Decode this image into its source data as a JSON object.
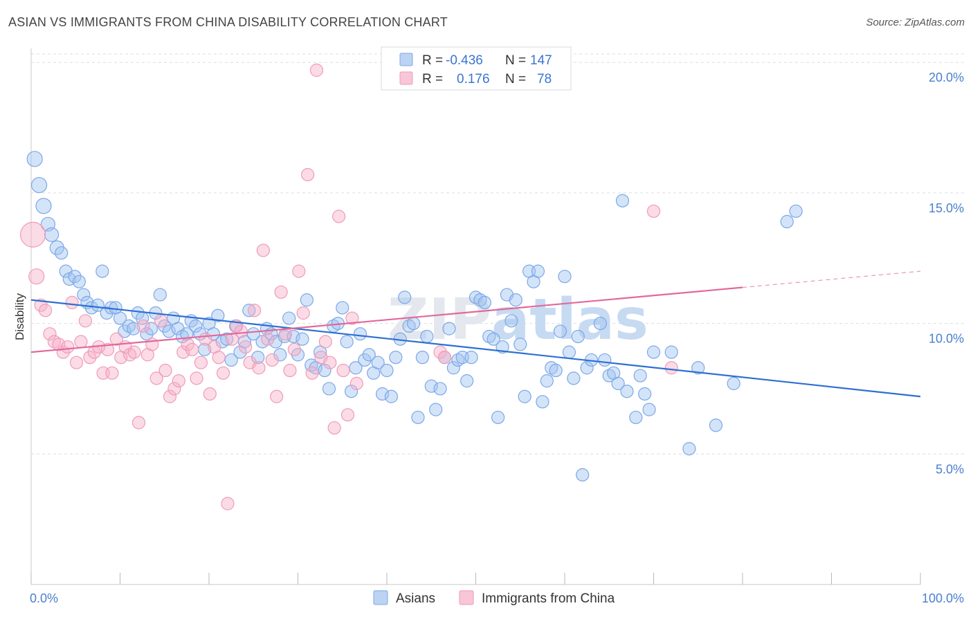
{
  "header": {
    "title": "ASIAN VS IMMIGRANTS FROM CHINA DISABILITY CORRELATION CHART",
    "source": "Source: ZipAtlas.com"
  },
  "watermark": {
    "zip": "ZIP",
    "atlas": "atlas"
  },
  "legend_top": {
    "rows": [
      {
        "r_label": "R =",
        "r_value": "-0.436",
        "n_label": "N =",
        "n_value": "147",
        "color": "#7aa7e8"
      },
      {
        "r_label": "R =",
        "r_value": "0.176",
        "n_label": "N =",
        "n_value": "78",
        "color": "#f09ab8"
      }
    ]
  },
  "legend_bottom": {
    "items": [
      {
        "label": "Asians",
        "color": "#7aa7e8"
      },
      {
        "label": "Immigrants from China",
        "color": "#f09ab8"
      }
    ]
  },
  "chart_data": {
    "type": "scatter",
    "title": "ASIAN VS IMMIGRANTS FROM CHINA DISABILITY CORRELATION CHART",
    "xlabel": "",
    "ylabel": "Disability",
    "x_ticks": [
      "0.0%",
      "100.0%"
    ],
    "y_ticks": [
      "5.0%",
      "10.0%",
      "15.0%",
      "20.0%"
    ],
    "xlim": [
      0,
      100
    ],
    "ylim": [
      0,
      20.8
    ],
    "grid": "horizontal dashed",
    "legend_position": "top-center",
    "series": [
      {
        "name": "Asians",
        "color": "#7aa7e8",
        "line_color": "#2d6fd2",
        "trend": {
          "x0": 0,
          "y0": 10.9,
          "x1": 100,
          "y1": 7.2,
          "dash_from": null
        },
        "points": [
          [
            0.4,
            16.3,
            11
          ],
          [
            0.9,
            15.3,
            11
          ],
          [
            1.4,
            14.5,
            11
          ],
          [
            1.9,
            13.8,
            10
          ],
          [
            2.3,
            13.4,
            10
          ],
          [
            2.9,
            12.9,
            10
          ],
          [
            3.4,
            12.7,
            9
          ],
          [
            3.9,
            12.0,
            9
          ],
          [
            4.3,
            11.7,
            9
          ],
          [
            4.9,
            11.8,
            9
          ],
          [
            5.4,
            11.6,
            9
          ],
          [
            5.9,
            11.1,
            9
          ],
          [
            6.3,
            10.8,
            9
          ],
          [
            6.8,
            10.6,
            9
          ],
          [
            7.5,
            10.7,
            9
          ],
          [
            8.0,
            12.0,
            9
          ],
          [
            8.5,
            10.4,
            9
          ],
          [
            9.0,
            10.6,
            9
          ],
          [
            9.5,
            10.6,
            9
          ],
          [
            10.0,
            10.2,
            9
          ],
          [
            10.5,
            9.7,
            9
          ],
          [
            11.0,
            9.9,
            9
          ],
          [
            11.5,
            9.8,
            9
          ],
          [
            12.0,
            10.4,
            9
          ],
          [
            12.5,
            10.2,
            9
          ],
          [
            13.0,
            9.6,
            9
          ],
          [
            13.5,
            9.8,
            9
          ],
          [
            14.0,
            10.4,
            9
          ],
          [
            14.5,
            11.1,
            9
          ],
          [
            15.0,
            9.9,
            9
          ],
          [
            15.5,
            9.7,
            9
          ],
          [
            16.0,
            10.2,
            9
          ],
          [
            16.5,
            9.8,
            9
          ],
          [
            17.0,
            9.5,
            9
          ],
          [
            17.5,
            9.6,
            9
          ],
          [
            18.0,
            10.1,
            9
          ],
          [
            18.5,
            9.9,
            9
          ],
          [
            19.0,
            9.6,
            9
          ],
          [
            19.5,
            9.0,
            9
          ],
          [
            20.0,
            10.0,
            9
          ],
          [
            20.5,
            9.6,
            9
          ],
          [
            21.0,
            10.3,
            9
          ],
          [
            21.5,
            9.3,
            9
          ],
          [
            22.0,
            9.4,
            9
          ],
          [
            22.5,
            8.6,
            9
          ],
          [
            23.0,
            9.9,
            9
          ],
          [
            23.5,
            8.9,
            9
          ],
          [
            24.0,
            9.3,
            9
          ],
          [
            24.5,
            10.5,
            9
          ],
          [
            25.0,
            9.6,
            9
          ],
          [
            25.5,
            8.7,
            9
          ],
          [
            26.0,
            9.3,
            9
          ],
          [
            26.5,
            9.8,
            9
          ],
          [
            27.0,
            9.6,
            9
          ],
          [
            27.5,
            9.3,
            9
          ],
          [
            28.0,
            8.8,
            9
          ],
          [
            28.5,
            9.5,
            9
          ],
          [
            29.0,
            10.2,
            9
          ],
          [
            29.5,
            9.5,
            9
          ],
          [
            30.0,
            8.8,
            9
          ],
          [
            30.5,
            9.4,
            9
          ],
          [
            31.0,
            10.9,
            9
          ],
          [
            31.5,
            8.4,
            9
          ],
          [
            32.0,
            8.3,
            9
          ],
          [
            32.5,
            8.9,
            9
          ],
          [
            33.0,
            8.2,
            9
          ],
          [
            33.5,
            7.5,
            9
          ],
          [
            34.0,
            9.9,
            9
          ],
          [
            34.5,
            10.0,
            9
          ],
          [
            35.0,
            10.6,
            9
          ],
          [
            35.5,
            9.3,
            9
          ],
          [
            36.0,
            7.4,
            9
          ],
          [
            36.5,
            8.3,
            9
          ],
          [
            37.0,
            9.6,
            9
          ],
          [
            37.5,
            8.6,
            9
          ],
          [
            38.0,
            8.8,
            9
          ],
          [
            38.5,
            8.1,
            9
          ],
          [
            39.0,
            8.5,
            9
          ],
          [
            39.5,
            7.3,
            9
          ],
          [
            40.0,
            8.2,
            9
          ],
          [
            40.5,
            7.2,
            9
          ],
          [
            41.0,
            8.7,
            9
          ],
          [
            41.5,
            9.4,
            9
          ],
          [
            42.0,
            11.0,
            9
          ],
          [
            42.5,
            9.9,
            9
          ],
          [
            43.0,
            10.0,
            9
          ],
          [
            43.5,
            6.4,
            9
          ],
          [
            44.0,
            8.7,
            9
          ],
          [
            44.5,
            9.5,
            9
          ],
          [
            45.0,
            7.6,
            9
          ],
          [
            45.5,
            6.7,
            9
          ],
          [
            46.0,
            7.5,
            9
          ],
          [
            46.5,
            8.7,
            9
          ],
          [
            47.0,
            9.8,
            9
          ],
          [
            47.5,
            8.3,
            9
          ],
          [
            48.0,
            8.6,
            9
          ],
          [
            48.5,
            8.7,
            9
          ],
          [
            49.0,
            7.8,
            9
          ],
          [
            49.5,
            8.7,
            9
          ],
          [
            50.0,
            11.0,
            9
          ],
          [
            50.5,
            10.9,
            9
          ],
          [
            51.0,
            10.8,
            9
          ],
          [
            51.5,
            9.5,
            9
          ],
          [
            52.0,
            9.4,
            9
          ],
          [
            52.5,
            6.4,
            9
          ],
          [
            53.0,
            9.1,
            9
          ],
          [
            53.5,
            11.1,
            9
          ],
          [
            54.0,
            10.1,
            9
          ],
          [
            54.5,
            10.9,
            9
          ],
          [
            55.0,
            9.2,
            9
          ],
          [
            55.5,
            7.2,
            9
          ],
          [
            56.0,
            12.0,
            9
          ],
          [
            56.5,
            11.6,
            9
          ],
          [
            57.0,
            12.0,
            9
          ],
          [
            57.5,
            7.0,
            9
          ],
          [
            58.0,
            7.8,
            9
          ],
          [
            58.5,
            8.3,
            9
          ],
          [
            59.0,
            8.2,
            9
          ],
          [
            59.5,
            9.7,
            9
          ],
          [
            60.0,
            11.8,
            9
          ],
          [
            60.5,
            8.9,
            9
          ],
          [
            61.0,
            7.9,
            9
          ],
          [
            61.5,
            9.5,
            9
          ],
          [
            62.0,
            4.2,
            9
          ],
          [
            62.5,
            8.3,
            9
          ],
          [
            63.0,
            8.6,
            9
          ],
          [
            64.0,
            10.0,
            9
          ],
          [
            64.5,
            8.6,
            9
          ],
          [
            65.0,
            8.0,
            9
          ],
          [
            65.5,
            8.1,
            9
          ],
          [
            66.0,
            7.7,
            9
          ],
          [
            66.5,
            14.7,
            9
          ],
          [
            67.0,
            7.4,
            9
          ],
          [
            68.0,
            6.4,
            9
          ],
          [
            68.5,
            8.0,
            9
          ],
          [
            69.0,
            7.3,
            9
          ],
          [
            69.5,
            6.7,
            9
          ],
          [
            70.0,
            8.9,
            9
          ],
          [
            72.0,
            8.9,
            9
          ],
          [
            74.0,
            5.2,
            9
          ],
          [
            75.0,
            8.3,
            9
          ],
          [
            77.0,
            6.1,
            9
          ],
          [
            79.0,
            7.7,
            9
          ],
          [
            85.0,
            13.9,
            9
          ],
          [
            86.0,
            14.3,
            9
          ]
        ]
      },
      {
        "name": "Immigrants from China",
        "color": "#f09ab8",
        "line_color": "#e2689a",
        "trend": {
          "x0": 0,
          "y0": 8.9,
          "x1": 100,
          "y1": 12.0,
          "dash_from": 80
        },
        "points": [
          [
            0.2,
            13.4,
            18
          ],
          [
            0.6,
            11.8,
            11
          ],
          [
            1.1,
            10.7,
            9
          ],
          [
            1.6,
            10.5,
            9
          ],
          [
            2.1,
            9.6,
            9
          ],
          [
            2.6,
            9.3,
            9
          ],
          [
            3.1,
            9.2,
            9
          ],
          [
            3.6,
            8.9,
            9
          ],
          [
            4.1,
            9.1,
            9
          ],
          [
            4.6,
            10.8,
            9
          ],
          [
            5.1,
            8.5,
            9
          ],
          [
            5.6,
            9.3,
            9
          ],
          [
            6.1,
            10.1,
            9
          ],
          [
            6.6,
            8.7,
            9
          ],
          [
            7.1,
            8.9,
            9
          ],
          [
            7.6,
            9.1,
            9
          ],
          [
            8.1,
            8.1,
            9
          ],
          [
            8.6,
            9.0,
            9
          ],
          [
            9.1,
            8.1,
            9
          ],
          [
            9.6,
            9.4,
            9
          ],
          [
            10.1,
            8.7,
            9
          ],
          [
            10.6,
            9.1,
            9
          ],
          [
            11.1,
            8.8,
            9
          ],
          [
            11.6,
            8.9,
            9
          ],
          [
            12.1,
            6.2,
            9
          ],
          [
            12.6,
            9.9,
            9
          ],
          [
            13.1,
            8.8,
            9
          ],
          [
            13.6,
            9.2,
            9
          ],
          [
            14.1,
            7.9,
            9
          ],
          [
            14.6,
            10.1,
            9
          ],
          [
            15.1,
            8.2,
            9
          ],
          [
            15.6,
            7.2,
            9
          ],
          [
            16.1,
            7.5,
            9
          ],
          [
            16.6,
            7.8,
            9
          ],
          [
            17.1,
            8.9,
            9
          ],
          [
            17.6,
            9.2,
            9
          ],
          [
            18.1,
            9.0,
            9
          ],
          [
            18.6,
            7.9,
            9
          ],
          [
            19.1,
            8.5,
            9
          ],
          [
            19.6,
            9.4,
            9
          ],
          [
            20.1,
            7.3,
            9
          ],
          [
            20.6,
            9.1,
            9
          ],
          [
            21.1,
            8.7,
            9
          ],
          [
            21.6,
            8.1,
            9
          ],
          [
            22.1,
            3.1,
            9
          ],
          [
            22.6,
            9.4,
            9
          ],
          [
            23.1,
            9.9,
            9
          ],
          [
            23.6,
            9.7,
            9
          ],
          [
            24.1,
            9.1,
            9
          ],
          [
            24.6,
            8.5,
            9
          ],
          [
            25.1,
            10.5,
            9
          ],
          [
            25.6,
            8.3,
            9
          ],
          [
            26.1,
            12.8,
            9
          ],
          [
            26.6,
            9.4,
            9
          ],
          [
            27.1,
            8.6,
            9
          ],
          [
            27.6,
            7.2,
            9
          ],
          [
            28.1,
            11.2,
            9
          ],
          [
            28.6,
            9.6,
            9
          ],
          [
            29.1,
            8.2,
            9
          ],
          [
            29.6,
            9.0,
            9
          ],
          [
            30.1,
            12.0,
            9
          ],
          [
            30.6,
            10.4,
            9
          ],
          [
            31.1,
            15.7,
            9
          ],
          [
            31.6,
            8.1,
            9
          ],
          [
            32.1,
            19.7,
            9
          ],
          [
            32.6,
            8.7,
            9
          ],
          [
            33.1,
            9.3,
            9
          ],
          [
            33.6,
            8.5,
            9
          ],
          [
            34.1,
            6.0,
            9
          ],
          [
            34.6,
            14.1,
            9
          ],
          [
            35.1,
            8.2,
            9
          ],
          [
            35.6,
            6.5,
            9
          ],
          [
            36.1,
            10.2,
            9
          ],
          [
            36.6,
            7.7,
            9
          ],
          [
            46.0,
            8.9,
            9
          ],
          [
            46.5,
            8.7,
            9
          ],
          [
            70.0,
            14.3,
            9
          ],
          [
            72.0,
            8.3,
            9
          ]
        ]
      }
    ]
  }
}
